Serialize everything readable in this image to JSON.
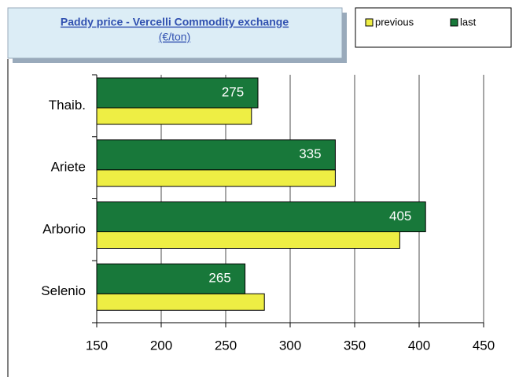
{
  "chart_data": {
    "type": "bar",
    "orientation": "horizontal",
    "title": "Paddy price - Vercelli Commodity exchange",
    "subtitle": "(€/ton)",
    "categories": [
      "Thaib.",
      "Ariete",
      "Arborio",
      "Selenio"
    ],
    "series": [
      {
        "name": "previous",
        "color": "#eeee44",
        "values": [
          270,
          335,
          385,
          280
        ]
      },
      {
        "name": "last",
        "color": "#18783a",
        "values": [
          275,
          335,
          405,
          265
        ],
        "data_labels": true
      }
    ],
    "xlim": [
      150,
      450
    ],
    "xticks": [
      150,
      200,
      250,
      300,
      350,
      400,
      450
    ],
    "grid": true,
    "legend": "top-right"
  }
}
